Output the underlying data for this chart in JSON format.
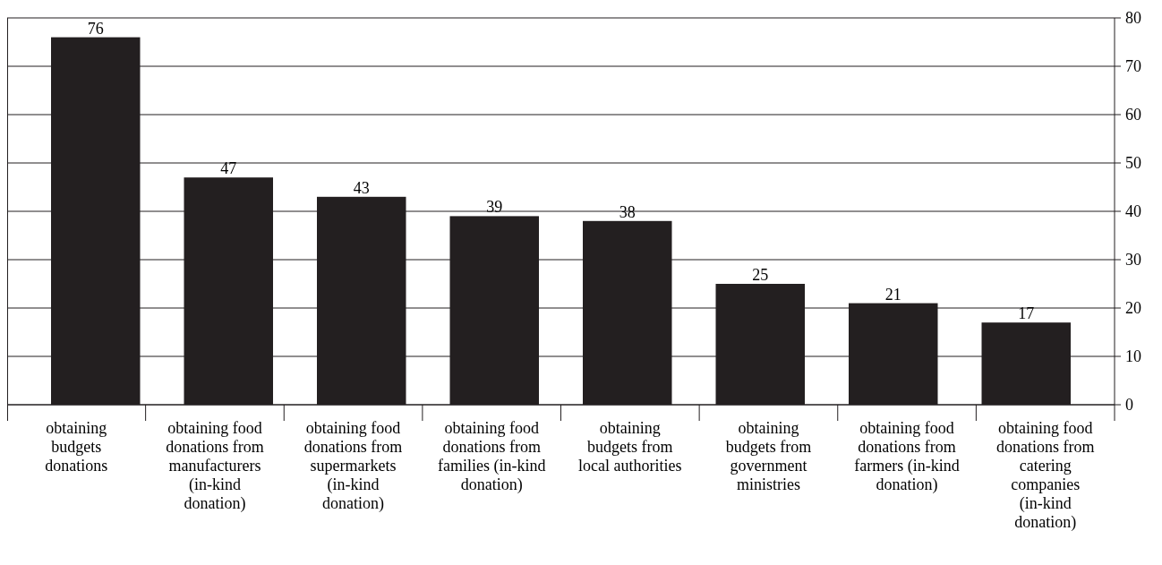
{
  "chart_data": {
    "type": "bar",
    "categories": [
      "obtaining budgets donations",
      "obtaining food donations from manufacturers (in-kind donation)",
      "obtaining food donations from supermarkets (in-kind donation)",
      "obtaining food donations from families (in-kind donation)",
      "obtaining budgets from local authorities",
      "obtaining budgets from government ministries",
      "obtaining food donations from farmers (in-kind donation)",
      "obtaining food donations from catering companies (in-kind donation)"
    ],
    "values": [
      76,
      47,
      43,
      39,
      38,
      25,
      21,
      17
    ],
    "color": "#231f20",
    "ylim": [
      0,
      80
    ],
    "yticks": [
      0,
      10,
      20,
      30,
      40,
      50,
      60,
      70,
      80
    ],
    "grid": "y",
    "data_labels": true
  }
}
